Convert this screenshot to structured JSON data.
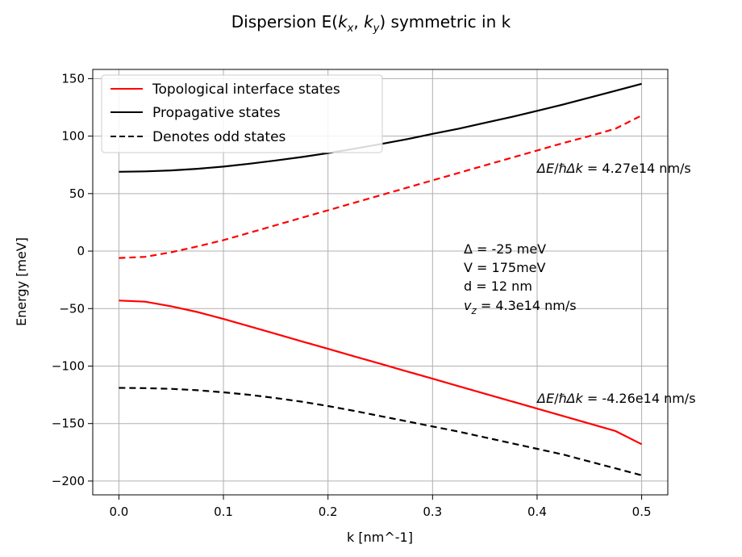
{
  "chart_data": {
    "type": "line",
    "title": "Dispersion E(k_x, k_y) symmetric in k",
    "xlabel": "k [nm^-1]",
    "ylabel": "Energy [meV]",
    "xlim": [
      -0.025,
      0.525
    ],
    "ylim": [
      -212,
      158
    ],
    "xticks": [
      0.0,
      0.1,
      0.2,
      0.3,
      0.4,
      0.5
    ],
    "xtick_labels": [
      "0.0",
      "0.1",
      "0.2",
      "0.3",
      "0.4",
      "0.5"
    ],
    "yticks": [
      150,
      100,
      50,
      0,
      -50,
      -100,
      -150,
      -200
    ],
    "ytick_labels": [
      "150",
      "100",
      "50",
      "0",
      "−50",
      "−100",
      "−150",
      "−200"
    ],
    "grid": true,
    "legend_position": "top-left",
    "legend": [
      {
        "label": "Topological interface states",
        "color": "#ff0000",
        "style": "solid"
      },
      {
        "label": "Propagative states",
        "color": "#000000",
        "style": "solid"
      },
      {
        "label": "Denotes odd states",
        "color": "#000000",
        "style": "dashed"
      }
    ],
    "x": [
      0.0,
      0.025,
      0.05,
      0.075,
      0.1,
      0.125,
      0.15,
      0.175,
      0.2,
      0.225,
      0.25,
      0.275,
      0.3,
      0.325,
      0.35,
      0.375,
      0.4,
      0.425,
      0.45,
      0.475,
      0.5
    ],
    "series": [
      {
        "color": "#000000",
        "style": "solid",
        "values": [
          69,
          69.3,
          70.2,
          71.6,
          73.5,
          76.0,
          78.8,
          81.8,
          85.2,
          89.0,
          93.0,
          97.2,
          102.0,
          106.5,
          111.5,
          116.5,
          122.0,
          127.5,
          133.5,
          139.5,
          145.5
        ]
      },
      {
        "color": "#ff0000",
        "style": "dashed",
        "values": [
          -6,
          -5,
          -1,
          4,
          9.5,
          16,
          22.5,
          29,
          35.5,
          42,
          48.5,
          55,
          61.5,
          68,
          74.5,
          81,
          87.5,
          94,
          100,
          106.5,
          118
        ]
      },
      {
        "color": "#ff0000",
        "style": "solid",
        "values": [
          -43,
          -44,
          -48,
          -53,
          -59,
          -65.5,
          -72,
          -78.5,
          -85,
          -91.5,
          -98,
          -104.5,
          -111,
          -117.5,
          -124,
          -130.5,
          -137,
          -143.5,
          -150,
          -156.5,
          -168
        ]
      },
      {
        "color": "#000000",
        "style": "dashed",
        "values": [
          -119,
          -119.2,
          -119.8,
          -121,
          -122.8,
          -125,
          -127.8,
          -131,
          -134.8,
          -139,
          -143.5,
          -148,
          -152.5,
          -157,
          -162,
          -167,
          -172,
          -177,
          -183,
          -189,
          -195
        ]
      }
    ],
    "annotations": [
      {
        "text": "ΔE/ℏΔk = 4.27e14 nm/s",
        "x": 0.4,
        "y": 74
      },
      {
        "lines": [
          "Δ = -25 meV",
          "V = 175meV",
          "d = 12 nm",
          "v_z = 4.3e14 nm/s"
        ],
        "x": 0.33,
        "y": 3
      },
      {
        "text": "ΔE/ℏΔk = -4.26e14 nm/s",
        "x": 0.4,
        "y": -130
      }
    ]
  }
}
